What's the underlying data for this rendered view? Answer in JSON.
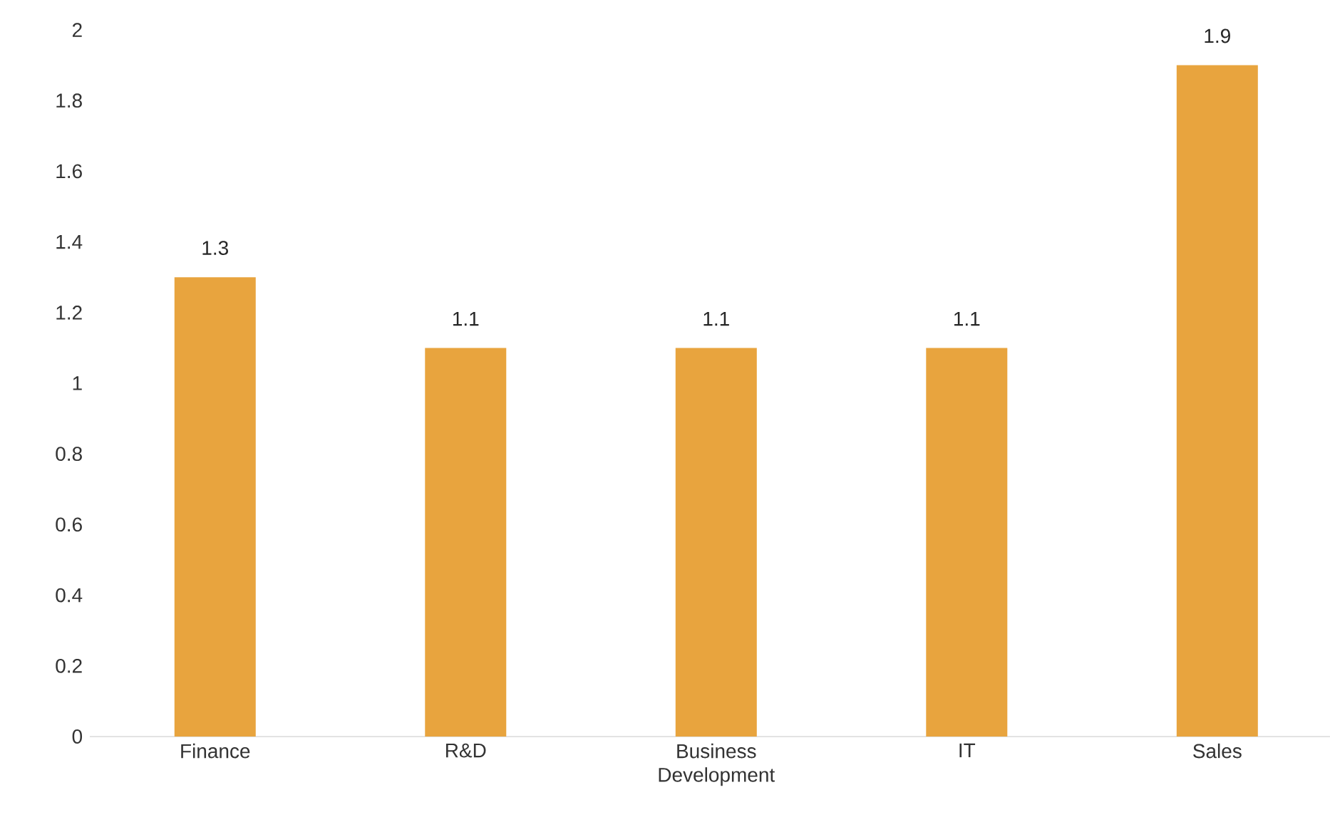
{
  "chart_data": {
    "type": "bar",
    "categories": [
      "Finance",
      "R&D",
      "Business Development",
      "IT",
      "Sales"
    ],
    "values": [
      1.3,
      1.1,
      1.1,
      1.1,
      1.9
    ],
    "color": "#e8a43e",
    "ylim": [
      0,
      2
    ],
    "yticks": [
      0,
      0.2,
      0.4,
      0.6,
      0.8,
      1,
      1.2,
      1.4,
      1.6,
      1.8,
      2
    ],
    "data_labels": true,
    "grid": false
  }
}
